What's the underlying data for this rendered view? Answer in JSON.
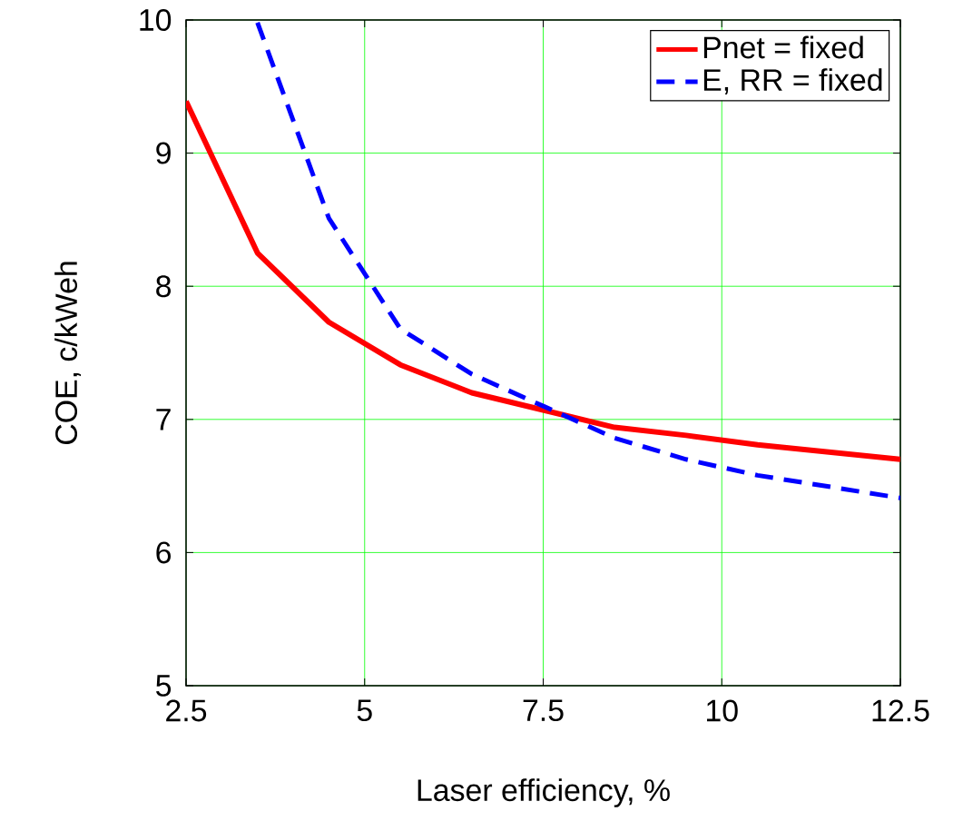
{
  "chart_data": {
    "type": "line",
    "xlabel": "Laser efficiency, %",
    "ylabel": "COE, c/kWeh",
    "xlim": [
      2.5,
      12.5
    ],
    "ylim": [
      5,
      10
    ],
    "xticks": [
      2.5,
      5,
      7.5,
      10,
      12.5
    ],
    "yticks": [
      5,
      6,
      7,
      8,
      9,
      10
    ],
    "grid": true,
    "legend": "top right",
    "marker": "none",
    "series": [
      {
        "name": "Pnet = fixed",
        "color": "#ff0000",
        "line_style": "solid",
        "x": [
          2.5,
          3.5,
          4.5,
          5.5,
          6.5,
          7.5,
          8.5,
          9.5,
          10.5,
          12.5
        ],
        "values": [
          9.39,
          8.25,
          7.73,
          7.41,
          7.2,
          7.07,
          6.94,
          6.88,
          6.81,
          6.7
        ]
      },
      {
        "name": "E, RR = fixed",
        "color": "#0000ff",
        "line_style": "dashed",
        "x": [
          3.5,
          4.5,
          5.5,
          6.5,
          7.5,
          8.5,
          9.5,
          10.5,
          12.5
        ],
        "values": [
          9.98,
          8.51,
          7.68,
          7.34,
          7.1,
          6.86,
          6.7,
          6.58,
          6.41
        ]
      }
    ]
  }
}
